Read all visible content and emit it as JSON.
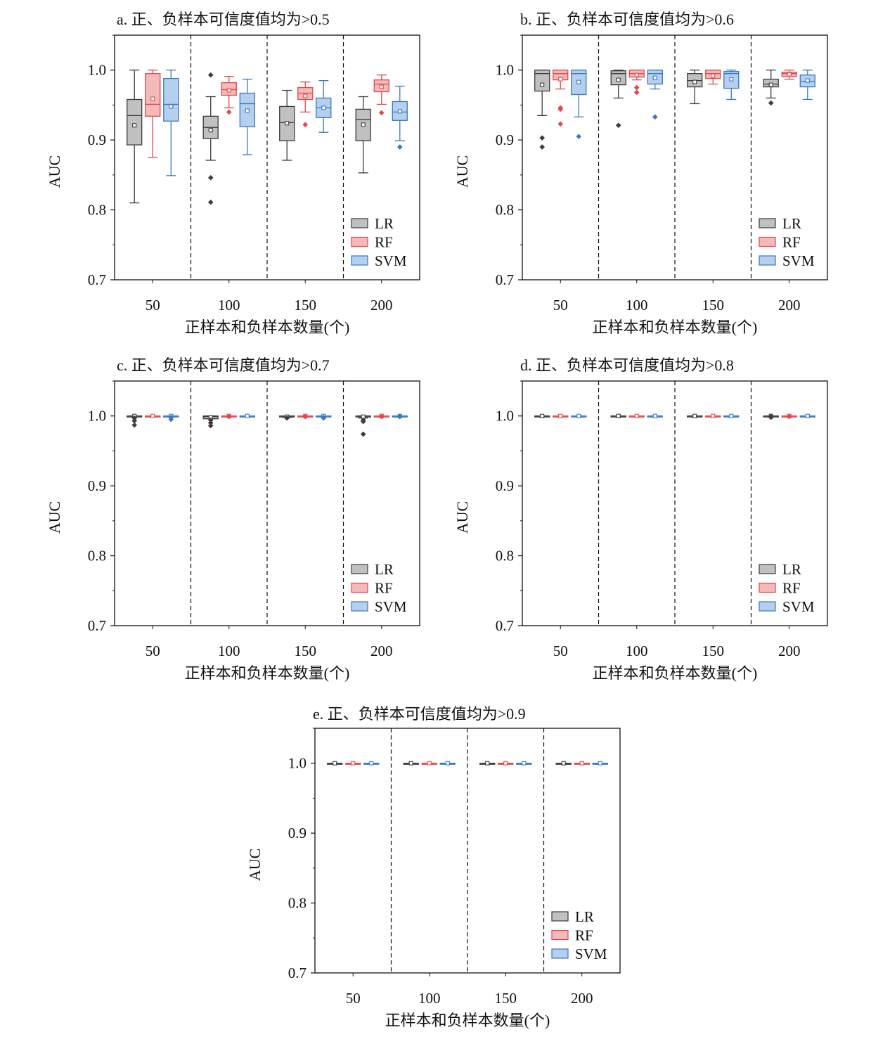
{
  "colors": {
    "LR": {
      "fill": "#c0c0c0",
      "stroke": "#3c3c3c"
    },
    "RF": {
      "fill": "#f4b9b9",
      "stroke": "#e0484c"
    },
    "SVM": {
      "fill": "#b5d0ef",
      "stroke": "#3a78c0"
    }
  },
  "chart_data": [
    {
      "type": "box",
      "title": "a. 正、负样本可信度值均为>0.5",
      "xlabel": "正样本和负样本数量(个)",
      "ylabel": "AUC",
      "ylim": [
        0.7,
        1.05
      ],
      "yticks": [
        "0.7",
        "0.8",
        "0.9",
        "1.0"
      ],
      "categories": [
        "50",
        "100",
        "150",
        "200"
      ],
      "legend": {
        "position": "bottom-right",
        "entries": [
          "LR",
          "RF",
          "SVM"
        ]
      },
      "series": [
        {
          "name": "LR",
          "boxes": [
            {
              "min": 0.81,
              "q1": 0.893,
              "median": 0.935,
              "q3": 0.958,
              "max": 1.0,
              "mean": 0.921,
              "outliers": []
            },
            {
              "min": 0.871,
              "q1": 0.902,
              "median": 0.918,
              "q3": 0.934,
              "max": 0.962,
              "mean": 0.914,
              "outliers": [
                0.993,
                0.846,
                0.811
              ]
            },
            {
              "min": 0.871,
              "q1": 0.899,
              "median": 0.925,
              "q3": 0.948,
              "max": 0.971,
              "mean": 0.924,
              "outliers": []
            },
            {
              "min": 0.853,
              "q1": 0.899,
              "median": 0.929,
              "q3": 0.944,
              "max": 0.962,
              "mean": 0.922,
              "outliers": []
            }
          ]
        },
        {
          "name": "RF",
          "boxes": [
            {
              "min": 0.875,
              "q1": 0.934,
              "median": 0.951,
              "q3": 0.995,
              "max": 1.0,
              "mean": 0.959,
              "outliers": []
            },
            {
              "min": 0.946,
              "q1": 0.964,
              "median": 0.972,
              "q3": 0.982,
              "max": 0.991,
              "mean": 0.971,
              "outliers": [
                0.94
              ]
            },
            {
              "min": 0.94,
              "q1": 0.958,
              "median": 0.967,
              "q3": 0.975,
              "max": 0.983,
              "mean": 0.963,
              "outliers": [
                0.922
              ]
            },
            {
              "min": 0.951,
              "q1": 0.969,
              "median": 0.98,
              "q3": 0.986,
              "max": 0.993,
              "mean": 0.976,
              "outliers": [
                0.939
              ]
            }
          ]
        },
        {
          "name": "SVM",
          "boxes": [
            {
              "min": 0.849,
              "q1": 0.927,
              "median": 0.951,
              "q3": 0.988,
              "max": 1.0,
              "mean": 0.948,
              "outliers": []
            },
            {
              "min": 0.879,
              "q1": 0.919,
              "median": 0.952,
              "q3": 0.967,
              "max": 0.987,
              "mean": 0.942,
              "outliers": []
            },
            {
              "min": 0.911,
              "q1": 0.932,
              "median": 0.946,
              "q3": 0.96,
              "max": 0.985,
              "mean": 0.946,
              "outliers": []
            },
            {
              "min": 0.899,
              "q1": 0.928,
              "median": 0.94,
              "q3": 0.955,
              "max": 0.977,
              "mean": 0.941,
              "outliers": [
                0.89
              ]
            }
          ]
        }
      ]
    },
    {
      "type": "box",
      "title": "b. 正、负样本可信度值均为>0.6",
      "xlabel": "正样本和负样本数量(个)",
      "ylabel": "AUC",
      "ylim": [
        0.7,
        1.05
      ],
      "yticks": [
        "0.7",
        "0.8",
        "0.9",
        "1.0"
      ],
      "categories": [
        "50",
        "100",
        "150",
        "200"
      ],
      "legend": {
        "position": "bottom-right",
        "entries": [
          "LR",
          "RF",
          "SVM"
        ]
      },
      "series": [
        {
          "name": "LR",
          "boxes": [
            {
              "min": 0.935,
              "q1": 0.97,
              "median": 0.995,
              "q3": 1.0,
              "max": 1.0,
              "mean": 0.979,
              "outliers": [
                0.903,
                0.89
              ]
            },
            {
              "min": 0.96,
              "q1": 0.979,
              "median": 0.995,
              "q3": 0.999,
              "max": 1.0,
              "mean": 0.986,
              "outliers": [
                0.921
              ]
            },
            {
              "min": 0.952,
              "q1": 0.976,
              "median": 0.985,
              "q3": 0.995,
              "max": 1.0,
              "mean": 0.983,
              "outliers": []
            },
            {
              "min": 0.96,
              "q1": 0.976,
              "median": 0.98,
              "q3": 0.987,
              "max": 1.0,
              "mean": 0.979,
              "outliers": [
                0.953
              ]
            }
          ]
        },
        {
          "name": "RF",
          "boxes": [
            {
              "min": 0.973,
              "q1": 0.986,
              "median": 0.995,
              "q3": 1.0,
              "max": 1.0,
              "mean": 0.987,
              "outliers": [
                0.946,
                0.944,
                0.923
              ]
            },
            {
              "min": 0.986,
              "q1": 0.99,
              "median": 0.995,
              "q3": 1.0,
              "max": 1.0,
              "mean": 0.993,
              "outliers": [
                0.975,
                0.968
              ]
            },
            {
              "min": 0.98,
              "q1": 0.988,
              "median": 0.995,
              "q3": 1.0,
              "max": 1.0,
              "mean": 0.992,
              "outliers": []
            },
            {
              "min": 0.987,
              "q1": 0.991,
              "median": 0.995,
              "q3": 0.997,
              "max": 1.0,
              "mean": 0.994,
              "outliers": []
            }
          ]
        },
        {
          "name": "SVM",
          "boxes": [
            {
              "min": 0.933,
              "q1": 0.965,
              "median": 0.995,
              "q3": 1.0,
              "max": 1.0,
              "mean": 0.983,
              "outliers": [
                0.905
              ]
            },
            {
              "min": 0.973,
              "q1": 0.98,
              "median": 0.995,
              "q3": 1.0,
              "max": 1.0,
              "mean": 0.989,
              "outliers": [
                0.933
              ]
            },
            {
              "min": 0.958,
              "q1": 0.974,
              "median": 0.995,
              "q3": 0.998,
              "max": 1.0,
              "mean": 0.987,
              "outliers": []
            },
            {
              "min": 0.958,
              "q1": 0.976,
              "median": 0.984,
              "q3": 0.993,
              "max": 1.0,
              "mean": 0.985,
              "outliers": []
            }
          ]
        }
      ]
    },
    {
      "type": "box",
      "title": "c. 正、负样本可信度值均为>0.7",
      "xlabel": "正样本和负样本数量(个)",
      "ylabel": "AUC",
      "ylim": [
        0.7,
        1.05
      ],
      "yticks": [
        "0.7",
        "0.8",
        "0.9",
        "1.0"
      ],
      "categories": [
        "50",
        "100",
        "150",
        "200"
      ],
      "legend": {
        "position": "bottom-right",
        "entries": [
          "LR",
          "RF",
          "SVM"
        ]
      },
      "series": [
        {
          "name": "LR",
          "boxes": [
            {
              "min": 1.0,
              "q1": 1.0,
              "median": 1.0,
              "q3": 1.0,
              "max": 1.0,
              "mean": 1.0,
              "outliers": [
                0.997,
                0.993,
                0.987
              ]
            },
            {
              "min": 0.996,
              "q1": 0.996,
              "median": 0.999,
              "q3": 1.0,
              "max": 1.0,
              "mean": 0.998,
              "outliers": [
                0.994,
                0.99,
                0.986
              ]
            },
            {
              "min": 0.998,
              "q1": 0.999,
              "median": 1.0,
              "q3": 1.0,
              "max": 1.0,
              "mean": 0.999,
              "outliers": [
                0.997
              ]
            },
            {
              "min": 0.997,
              "q1": 0.999,
              "median": 1.0,
              "q3": 1.0,
              "max": 1.0,
              "mean": 0.999,
              "outliers": [
                0.994,
                0.992,
                0.974
              ]
            }
          ]
        },
        {
          "name": "RF",
          "boxes": [
            {
              "min": 1.0,
              "q1": 1.0,
              "median": 1.0,
              "q3": 1.0,
              "max": 1.0,
              "mean": 1.0,
              "outliers": []
            },
            {
              "min": 1.0,
              "q1": 1.0,
              "median": 1.0,
              "q3": 1.0,
              "max": 1.0,
              "mean": 1.0,
              "outliers": [
                0.999
              ]
            },
            {
              "min": 1.0,
              "q1": 1.0,
              "median": 1.0,
              "q3": 1.0,
              "max": 1.0,
              "mean": 1.0,
              "outliers": [
                0.999
              ]
            },
            {
              "min": 1.0,
              "q1": 1.0,
              "median": 1.0,
              "q3": 1.0,
              "max": 1.0,
              "mean": 1.0,
              "outliers": [
                0.999
              ]
            }
          ]
        },
        {
          "name": "SVM",
          "boxes": [
            {
              "min": 1.0,
              "q1": 1.0,
              "median": 1.0,
              "q3": 1.0,
              "max": 1.0,
              "mean": 1.0,
              "outliers": [
                0.998,
                0.995
              ]
            },
            {
              "min": 1.0,
              "q1": 1.0,
              "median": 1.0,
              "q3": 1.0,
              "max": 1.0,
              "mean": 1.0,
              "outliers": []
            },
            {
              "min": 1.0,
              "q1": 1.0,
              "median": 1.0,
              "q3": 1.0,
              "max": 1.0,
              "mean": 1.0,
              "outliers": [
                0.998,
                0.997
              ]
            },
            {
              "min": 1.0,
              "q1": 1.0,
              "median": 1.0,
              "q3": 1.0,
              "max": 1.0,
              "mean": 1.0,
              "outliers": [
                0.999
              ]
            }
          ]
        }
      ]
    },
    {
      "type": "box",
      "title": "d. 正、负样本可信度值均为>0.8",
      "xlabel": "正样本和负样本数量(个)",
      "ylabel": "AUC",
      "ylim": [
        0.7,
        1.05
      ],
      "yticks": [
        "0.7",
        "0.8",
        "0.9",
        "1.0"
      ],
      "categories": [
        "50",
        "100",
        "150",
        "200"
      ],
      "legend": {
        "position": "bottom-right",
        "entries": [
          "LR",
          "RF",
          "SVM"
        ]
      },
      "series": [
        {
          "name": "LR",
          "boxes": [
            {
              "min": 1.0,
              "q1": 1.0,
              "median": 1.0,
              "q3": 1.0,
              "max": 1.0,
              "mean": 1.0,
              "outliers": []
            },
            {
              "min": 1.0,
              "q1": 1.0,
              "median": 1.0,
              "q3": 1.0,
              "max": 1.0,
              "mean": 1.0,
              "outliers": []
            },
            {
              "min": 1.0,
              "q1": 1.0,
              "median": 1.0,
              "q3": 1.0,
              "max": 1.0,
              "mean": 1.0,
              "outliers": []
            },
            {
              "min": 1.0,
              "q1": 1.0,
              "median": 1.0,
              "q3": 1.0,
              "max": 1.0,
              "mean": 1.0,
              "outliers": [
                0.999,
                0.998
              ]
            }
          ]
        },
        {
          "name": "RF",
          "boxes": [
            {
              "min": 1.0,
              "q1": 1.0,
              "median": 1.0,
              "q3": 1.0,
              "max": 1.0,
              "mean": 1.0,
              "outliers": []
            },
            {
              "min": 1.0,
              "q1": 1.0,
              "median": 1.0,
              "q3": 1.0,
              "max": 1.0,
              "mean": 1.0,
              "outliers": []
            },
            {
              "min": 1.0,
              "q1": 1.0,
              "median": 1.0,
              "q3": 1.0,
              "max": 1.0,
              "mean": 1.0,
              "outliers": []
            },
            {
              "min": 1.0,
              "q1": 1.0,
              "median": 1.0,
              "q3": 1.0,
              "max": 1.0,
              "mean": 1.0,
              "outliers": [
                0.999
              ]
            }
          ]
        },
        {
          "name": "SVM",
          "boxes": [
            {
              "min": 1.0,
              "q1": 1.0,
              "median": 1.0,
              "q3": 1.0,
              "max": 1.0,
              "mean": 1.0,
              "outliers": []
            },
            {
              "min": 1.0,
              "q1": 1.0,
              "median": 1.0,
              "q3": 1.0,
              "max": 1.0,
              "mean": 1.0,
              "outliers": []
            },
            {
              "min": 1.0,
              "q1": 1.0,
              "median": 1.0,
              "q3": 1.0,
              "max": 1.0,
              "mean": 1.0,
              "outliers": []
            },
            {
              "min": 1.0,
              "q1": 1.0,
              "median": 1.0,
              "q3": 1.0,
              "max": 1.0,
              "mean": 1.0,
              "outliers": []
            }
          ]
        }
      ]
    },
    {
      "type": "box",
      "title": "e. 正、负样本可信度值均为>0.9",
      "xlabel": "正样本和负样本数量(个)",
      "ylabel": "AUC",
      "ylim": [
        0.7,
        1.05
      ],
      "yticks": [
        "0.7",
        "0.8",
        "0.9",
        "1.0"
      ],
      "categories": [
        "50",
        "100",
        "150",
        "200"
      ],
      "legend": {
        "position": "bottom-right",
        "entries": [
          "LR",
          "RF",
          "SVM"
        ]
      },
      "series": [
        {
          "name": "LR",
          "boxes": [
            {
              "min": 1.0,
              "q1": 1.0,
              "median": 1.0,
              "q3": 1.0,
              "max": 1.0,
              "mean": 1.0,
              "outliers": []
            },
            {
              "min": 1.0,
              "q1": 1.0,
              "median": 1.0,
              "q3": 1.0,
              "max": 1.0,
              "mean": 1.0,
              "outliers": []
            },
            {
              "min": 1.0,
              "q1": 1.0,
              "median": 1.0,
              "q3": 1.0,
              "max": 1.0,
              "mean": 1.0,
              "outliers": []
            },
            {
              "min": 1.0,
              "q1": 1.0,
              "median": 1.0,
              "q3": 1.0,
              "max": 1.0,
              "mean": 1.0,
              "outliers": []
            }
          ]
        },
        {
          "name": "RF",
          "boxes": [
            {
              "min": 1.0,
              "q1": 1.0,
              "median": 1.0,
              "q3": 1.0,
              "max": 1.0,
              "mean": 1.0,
              "outliers": []
            },
            {
              "min": 1.0,
              "q1": 1.0,
              "median": 1.0,
              "q3": 1.0,
              "max": 1.0,
              "mean": 1.0,
              "outliers": []
            },
            {
              "min": 1.0,
              "q1": 1.0,
              "median": 1.0,
              "q3": 1.0,
              "max": 1.0,
              "mean": 1.0,
              "outliers": []
            },
            {
              "min": 1.0,
              "q1": 1.0,
              "median": 1.0,
              "q3": 1.0,
              "max": 1.0,
              "mean": 1.0,
              "outliers": []
            }
          ]
        },
        {
          "name": "SVM",
          "boxes": [
            {
              "min": 1.0,
              "q1": 1.0,
              "median": 1.0,
              "q3": 1.0,
              "max": 1.0,
              "mean": 1.0,
              "outliers": []
            },
            {
              "min": 1.0,
              "q1": 1.0,
              "median": 1.0,
              "q3": 1.0,
              "max": 1.0,
              "mean": 1.0,
              "outliers": []
            },
            {
              "min": 1.0,
              "q1": 1.0,
              "median": 1.0,
              "q3": 1.0,
              "max": 1.0,
              "mean": 1.0,
              "outliers": []
            },
            {
              "min": 1.0,
              "q1": 1.0,
              "median": 1.0,
              "q3": 1.0,
              "max": 1.0,
              "mean": 1.0,
              "outliers": []
            }
          ]
        }
      ]
    }
  ]
}
